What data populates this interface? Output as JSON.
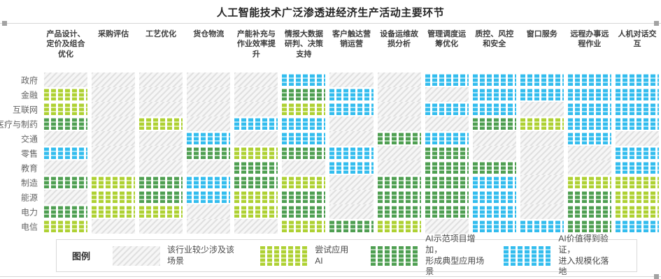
{
  "legend": {
    "title": "图例"
  },
  "chart_data": {
    "type": "heatmap",
    "title": "人工智能技术广泛渗透进经济生产活动主要环节",
    "rows": [
      "政府",
      "金融",
      "互联网",
      "医疗与制药",
      "交通",
      "零售",
      "教育",
      "制造",
      "能源",
      "电力",
      "电信"
    ],
    "columns": [
      "产品设计、定价及组合优化",
      "采购评估",
      "工艺优化",
      "货仓物流",
      "产能补充与作业效率提升",
      "情报大数据研判、决策支持",
      "客户触达营销运营",
      "设备运维故损分析",
      "管理调度运筹优化",
      "质控、风控和安全",
      "窗口服务",
      "远程办事远程作业",
      "人机对话交互"
    ],
    "levels": [
      {
        "code": 0,
        "label": "该行业较少涉及该场景",
        "color": "#dedede",
        "pattern": "diagonal-hatch"
      },
      {
        "code": 1,
        "label": "尝试应用AI",
        "color": "#aed133",
        "pattern": "checker"
      },
      {
        "code": 2,
        "label": "AI示范项目增加，\n形成典型应用场景",
        "color": "#4f9f52",
        "pattern": "checker"
      },
      {
        "code": 3,
        "label": "AI价值得到验证，\n进入规模化落地",
        "color": "#33bdee",
        "pattern": "checker"
      }
    ],
    "matrix": [
      [
        0,
        0,
        0,
        0,
        0,
        3,
        0,
        0,
        3,
        3,
        3,
        3,
        3
      ],
      [
        1,
        0,
        0,
        0,
        0,
        2,
        3,
        0,
        0,
        3,
        3,
        3,
        3
      ],
      [
        1,
        0,
        0,
        0,
        0,
        1,
        3,
        0,
        3,
        3,
        0,
        3,
        3
      ],
      [
        2,
        0,
        1,
        0,
        3,
        3,
        0,
        0,
        0,
        2,
        1,
        3,
        3
      ],
      [
        0,
        0,
        0,
        3,
        0,
        3,
        0,
        2,
        3,
        0,
        0,
        3,
        0
      ],
      [
        3,
        0,
        0,
        2,
        1,
        2,
        3,
        0,
        2,
        0,
        0,
        0,
        3
      ],
      [
        0,
        0,
        0,
        0,
        2,
        0,
        3,
        0,
        2,
        2,
        0,
        0,
        3
      ],
      [
        2,
        1,
        2,
        3,
        2,
        1,
        0,
        2,
        2,
        3,
        0,
        1,
        1
      ],
      [
        0,
        1,
        2,
        3,
        1,
        2,
        0,
        2,
        2,
        3,
        0,
        2,
        1
      ],
      [
        2,
        1,
        1,
        0,
        1,
        2,
        0,
        2,
        2,
        3,
        0,
        2,
        1
      ],
      [
        1,
        0,
        0,
        0,
        0,
        1,
        2,
        1,
        0,
        3,
        3,
        2,
        3
      ]
    ]
  }
}
